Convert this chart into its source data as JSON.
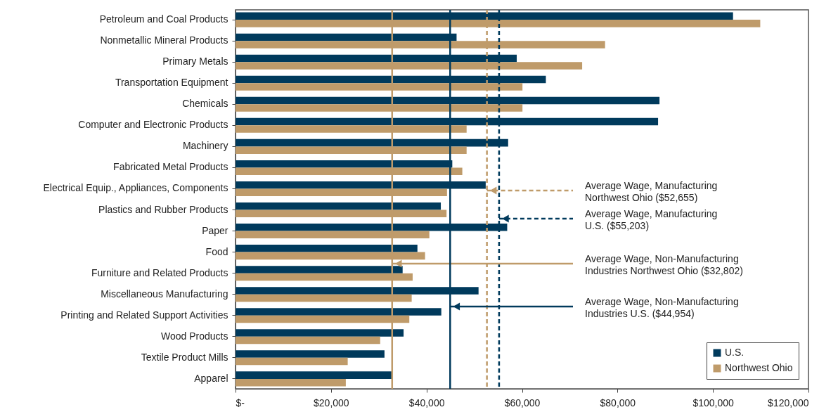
{
  "chart_data": {
    "type": "bar",
    "orientation": "horizontal",
    "categories": [
      "Petroleum and Coal Products",
      "Nonmetallic Mineral Products",
      "Primary Metals",
      "Transportation Equipment",
      "Chemicals",
      "Computer and Electronic Products",
      "Machinery",
      "Fabricated Metal Products",
      "Electrical Equip., Appliances, Components",
      "Plastics and Rubber Products",
      "Paper",
      "Food",
      "Furniture and Related Products",
      "Miscellaneous Manufacturing",
      "Printing and Related Support Activities",
      "Wood Products",
      "Textile Product Mills",
      "Apparel"
    ],
    "series": [
      {
        "name": "U.S.",
        "color": "#003a5c",
        "values": [
          104200,
          46300,
          58900,
          65000,
          88800,
          88500,
          57100,
          45400,
          52400,
          43000,
          56900,
          38100,
          35000,
          50900,
          43100,
          35200,
          31200,
          32700
        ]
      },
      {
        "name": "Northwest Ohio",
        "color": "#bf9b6a",
        "values": [
          109900,
          77400,
          72600,
          60100,
          60100,
          48400,
          48400,
          47500,
          44300,
          44200,
          40600,
          39700,
          37100,
          36900,
          36400,
          30300,
          23500,
          23100
        ]
      }
    ],
    "xlim": [
      0,
      120000
    ],
    "xticks": [
      {
        "value": 0,
        "label": "$-"
      },
      {
        "value": 20000,
        "label": "$20,000"
      },
      {
        "value": 40000,
        "label": "$40,000"
      },
      {
        "value": 60000,
        "label": "$60,000"
      },
      {
        "value": 80000,
        "label": "$80,000"
      },
      {
        "value": 100000,
        "label": "$100,000"
      },
      {
        "value": 120000,
        "label": "$120,000"
      }
    ],
    "ref_lines": [
      {
        "axis": "x",
        "value": 52655,
        "label": "Average Wage, Manufacturing\nNorthwest Ohio ($52,655)",
        "color": "#bf9b6a",
        "line_style": "dashed"
      },
      {
        "axis": "x",
        "value": 55203,
        "label": "Average Wage, Manufacturing\nU.S. ($55,203)",
        "color": "#003a5c",
        "line_style": "dashed"
      },
      {
        "axis": "x",
        "value": 32802,
        "label": "Average Wage, Non-Manufacturing\nIndustries Northwest Ohio ($32,802)",
        "color": "#bf9b6a",
        "line_style": "solid"
      },
      {
        "axis": "x",
        "value": 44954,
        "label": "Average Wage, Non-Manufacturing\nIndustries U.S. ($44,954)",
        "color": "#003a5c",
        "line_style": "solid"
      }
    ],
    "grid": false,
    "legend": "bottom right"
  }
}
